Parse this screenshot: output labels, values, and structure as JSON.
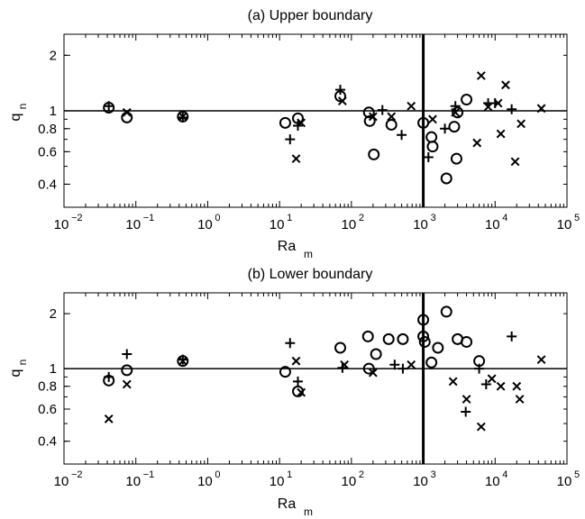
{
  "figure": {
    "xlabel_main": "Ra",
    "xlabel_sub": "m",
    "ylabel_main": "q",
    "ylabel_sub": "n"
  },
  "chart_data": [
    {
      "type": "scatter",
      "title": "(a) Upper boundary",
      "xlabel": "Ra_m",
      "ylabel": "q_n",
      "xscale": "log",
      "yscale": "log",
      "xlim": [
        0.01,
        100000
      ],
      "ylim": [
        0.3,
        2.6
      ],
      "x_ticks": [
        {
          "base": "10",
          "exp": "−2"
        },
        {
          "base": "10",
          "exp": "−1"
        },
        {
          "base": "10",
          "exp": "0"
        },
        {
          "base": "10",
          "exp": "1"
        },
        {
          "base": "10",
          "exp": "2"
        },
        {
          "base": "10",
          "exp": "3"
        },
        {
          "base": "10",
          "exp": "4"
        },
        {
          "base": "10",
          "exp": "5"
        }
      ],
      "y_ticks": [
        "0.4",
        "0.6",
        "0.8",
        "1",
        "2"
      ],
      "y_tick_values": [
        0.4,
        0.6,
        0.8,
        1,
        2
      ],
      "reference_lines": {
        "horizontal_y": 1,
        "vertical_x": 1000
      },
      "series": [
        {
          "marker": "o",
          "points": [
            [
              0.042,
              1.04
            ],
            [
              0.075,
              0.92
            ],
            [
              0.45,
              0.93
            ],
            [
              12,
              0.86
            ],
            [
              18,
              0.91
            ],
            [
              70,
              1.2
            ],
            [
              175,
              0.98
            ],
            [
              180,
              0.88
            ],
            [
              205,
              0.58
            ],
            [
              360,
              0.84
            ],
            [
              1000,
              0.86
            ],
            [
              1300,
              0.72
            ],
            [
              1350,
              0.64
            ],
            [
              2100,
              0.43
            ],
            [
              2700,
              0.82
            ],
            [
              2900,
              0.55
            ],
            [
              3000,
              0.98
            ],
            [
              4000,
              1.15
            ]
          ]
        },
        {
          "marker": "+",
          "points": [
            [
              0.042,
              1.06
            ],
            [
              0.45,
              0.92
            ],
            [
              14,
              0.7
            ],
            [
              18,
              0.83
            ],
            [
              70,
              1.3
            ],
            [
              270,
              1.01
            ],
            [
              500,
              0.74
            ],
            [
              1180,
              0.56
            ],
            [
              2000,
              0.8
            ],
            [
              2800,
              1.06
            ],
            [
              8000,
              1.1
            ],
            [
              10000,
              1.1
            ],
            [
              17000,
              1.02
            ]
          ]
        },
        {
          "marker": "x",
          "points": [
            [
              0.075,
              0.98
            ],
            [
              0.45,
              0.93
            ],
            [
              17,
              0.55
            ],
            [
              20,
              0.86
            ],
            [
              75,
              1.13
            ],
            [
              200,
              0.93
            ],
            [
              360,
              0.93
            ],
            [
              680,
              1.06
            ],
            [
              1350,
              0.9
            ],
            [
              2800,
              0.98
            ],
            [
              5600,
              0.67
            ],
            [
              6400,
              1.55
            ],
            [
              8000,
              1.05
            ],
            [
              11000,
              1.1
            ],
            [
              12000,
              0.75
            ],
            [
              14000,
              1.38
            ],
            [
              19000,
              0.53
            ],
            [
              23000,
              0.85
            ],
            [
              44000,
              1.03
            ]
          ]
        }
      ]
    },
    {
      "type": "scatter",
      "title": "(b) Lower boundary",
      "xlabel": "Ra_m",
      "ylabel": "q_n",
      "xscale": "log",
      "yscale": "log",
      "xlim": [
        0.01,
        100000
      ],
      "ylim": [
        0.3,
        2.6
      ],
      "x_ticks": [
        {
          "base": "10",
          "exp": "−2"
        },
        {
          "base": "10",
          "exp": "−1"
        },
        {
          "base": "10",
          "exp": "0"
        },
        {
          "base": "10",
          "exp": "1"
        },
        {
          "base": "10",
          "exp": "2"
        },
        {
          "base": "10",
          "exp": "3"
        },
        {
          "base": "10",
          "exp": "4"
        },
        {
          "base": "10",
          "exp": "5"
        }
      ],
      "y_ticks": [
        "0.4",
        "0.6",
        "0.8",
        "1",
        "2"
      ],
      "y_tick_values": [
        0.4,
        0.6,
        0.8,
        1,
        2
      ],
      "reference_lines": {
        "horizontal_y": 1,
        "vertical_x": 1000
      },
      "series": [
        {
          "marker": "o",
          "points": [
            [
              0.042,
              0.86
            ],
            [
              0.075,
              0.98
            ],
            [
              0.45,
              1.1
            ],
            [
              12,
              0.96
            ],
            [
              18,
              0.75
            ],
            [
              70,
              1.3
            ],
            [
              170,
              1.5
            ],
            [
              175,
              1.0
            ],
            [
              220,
              1.2
            ],
            [
              330,
              1.45
            ],
            [
              520,
              1.45
            ],
            [
              1000,
              1.85
            ],
            [
              1000,
              1.5
            ],
            [
              1050,
              1.4
            ],
            [
              1300,
              1.08
            ],
            [
              1600,
              1.3
            ],
            [
              2100,
              2.05
            ],
            [
              3000,
              1.45
            ],
            [
              4000,
              1.4
            ],
            [
              6000,
              1.1
            ]
          ]
        },
        {
          "marker": "+",
          "points": [
            [
              0.042,
              0.9
            ],
            [
              0.075,
              1.2
            ],
            [
              0.45,
              1.12
            ],
            [
              14,
              1.38
            ],
            [
              18,
              0.85
            ],
            [
              75,
              1.01
            ],
            [
              400,
              1.05
            ],
            [
              520,
              1.0
            ],
            [
              3900,
              0.58
            ],
            [
              6000,
              1.0
            ],
            [
              7500,
              0.82
            ],
            [
              17000,
              1.5
            ]
          ]
        },
        {
          "marker": "x",
          "points": [
            [
              0.042,
              0.53
            ],
            [
              0.075,
              0.82
            ],
            [
              0.45,
              1.1
            ],
            [
              17,
              1.1
            ],
            [
              20,
              0.74
            ],
            [
              80,
              1.05
            ],
            [
              200,
              0.95
            ],
            [
              680,
              1.05
            ],
            [
              2600,
              0.85
            ],
            [
              4000,
              0.68
            ],
            [
              6400,
              0.48
            ],
            [
              9000,
              0.88
            ],
            [
              12000,
              0.8
            ],
            [
              20000,
              0.8
            ],
            [
              22000,
              0.68
            ],
            [
              44000,
              1.12
            ]
          ]
        }
      ]
    }
  ]
}
